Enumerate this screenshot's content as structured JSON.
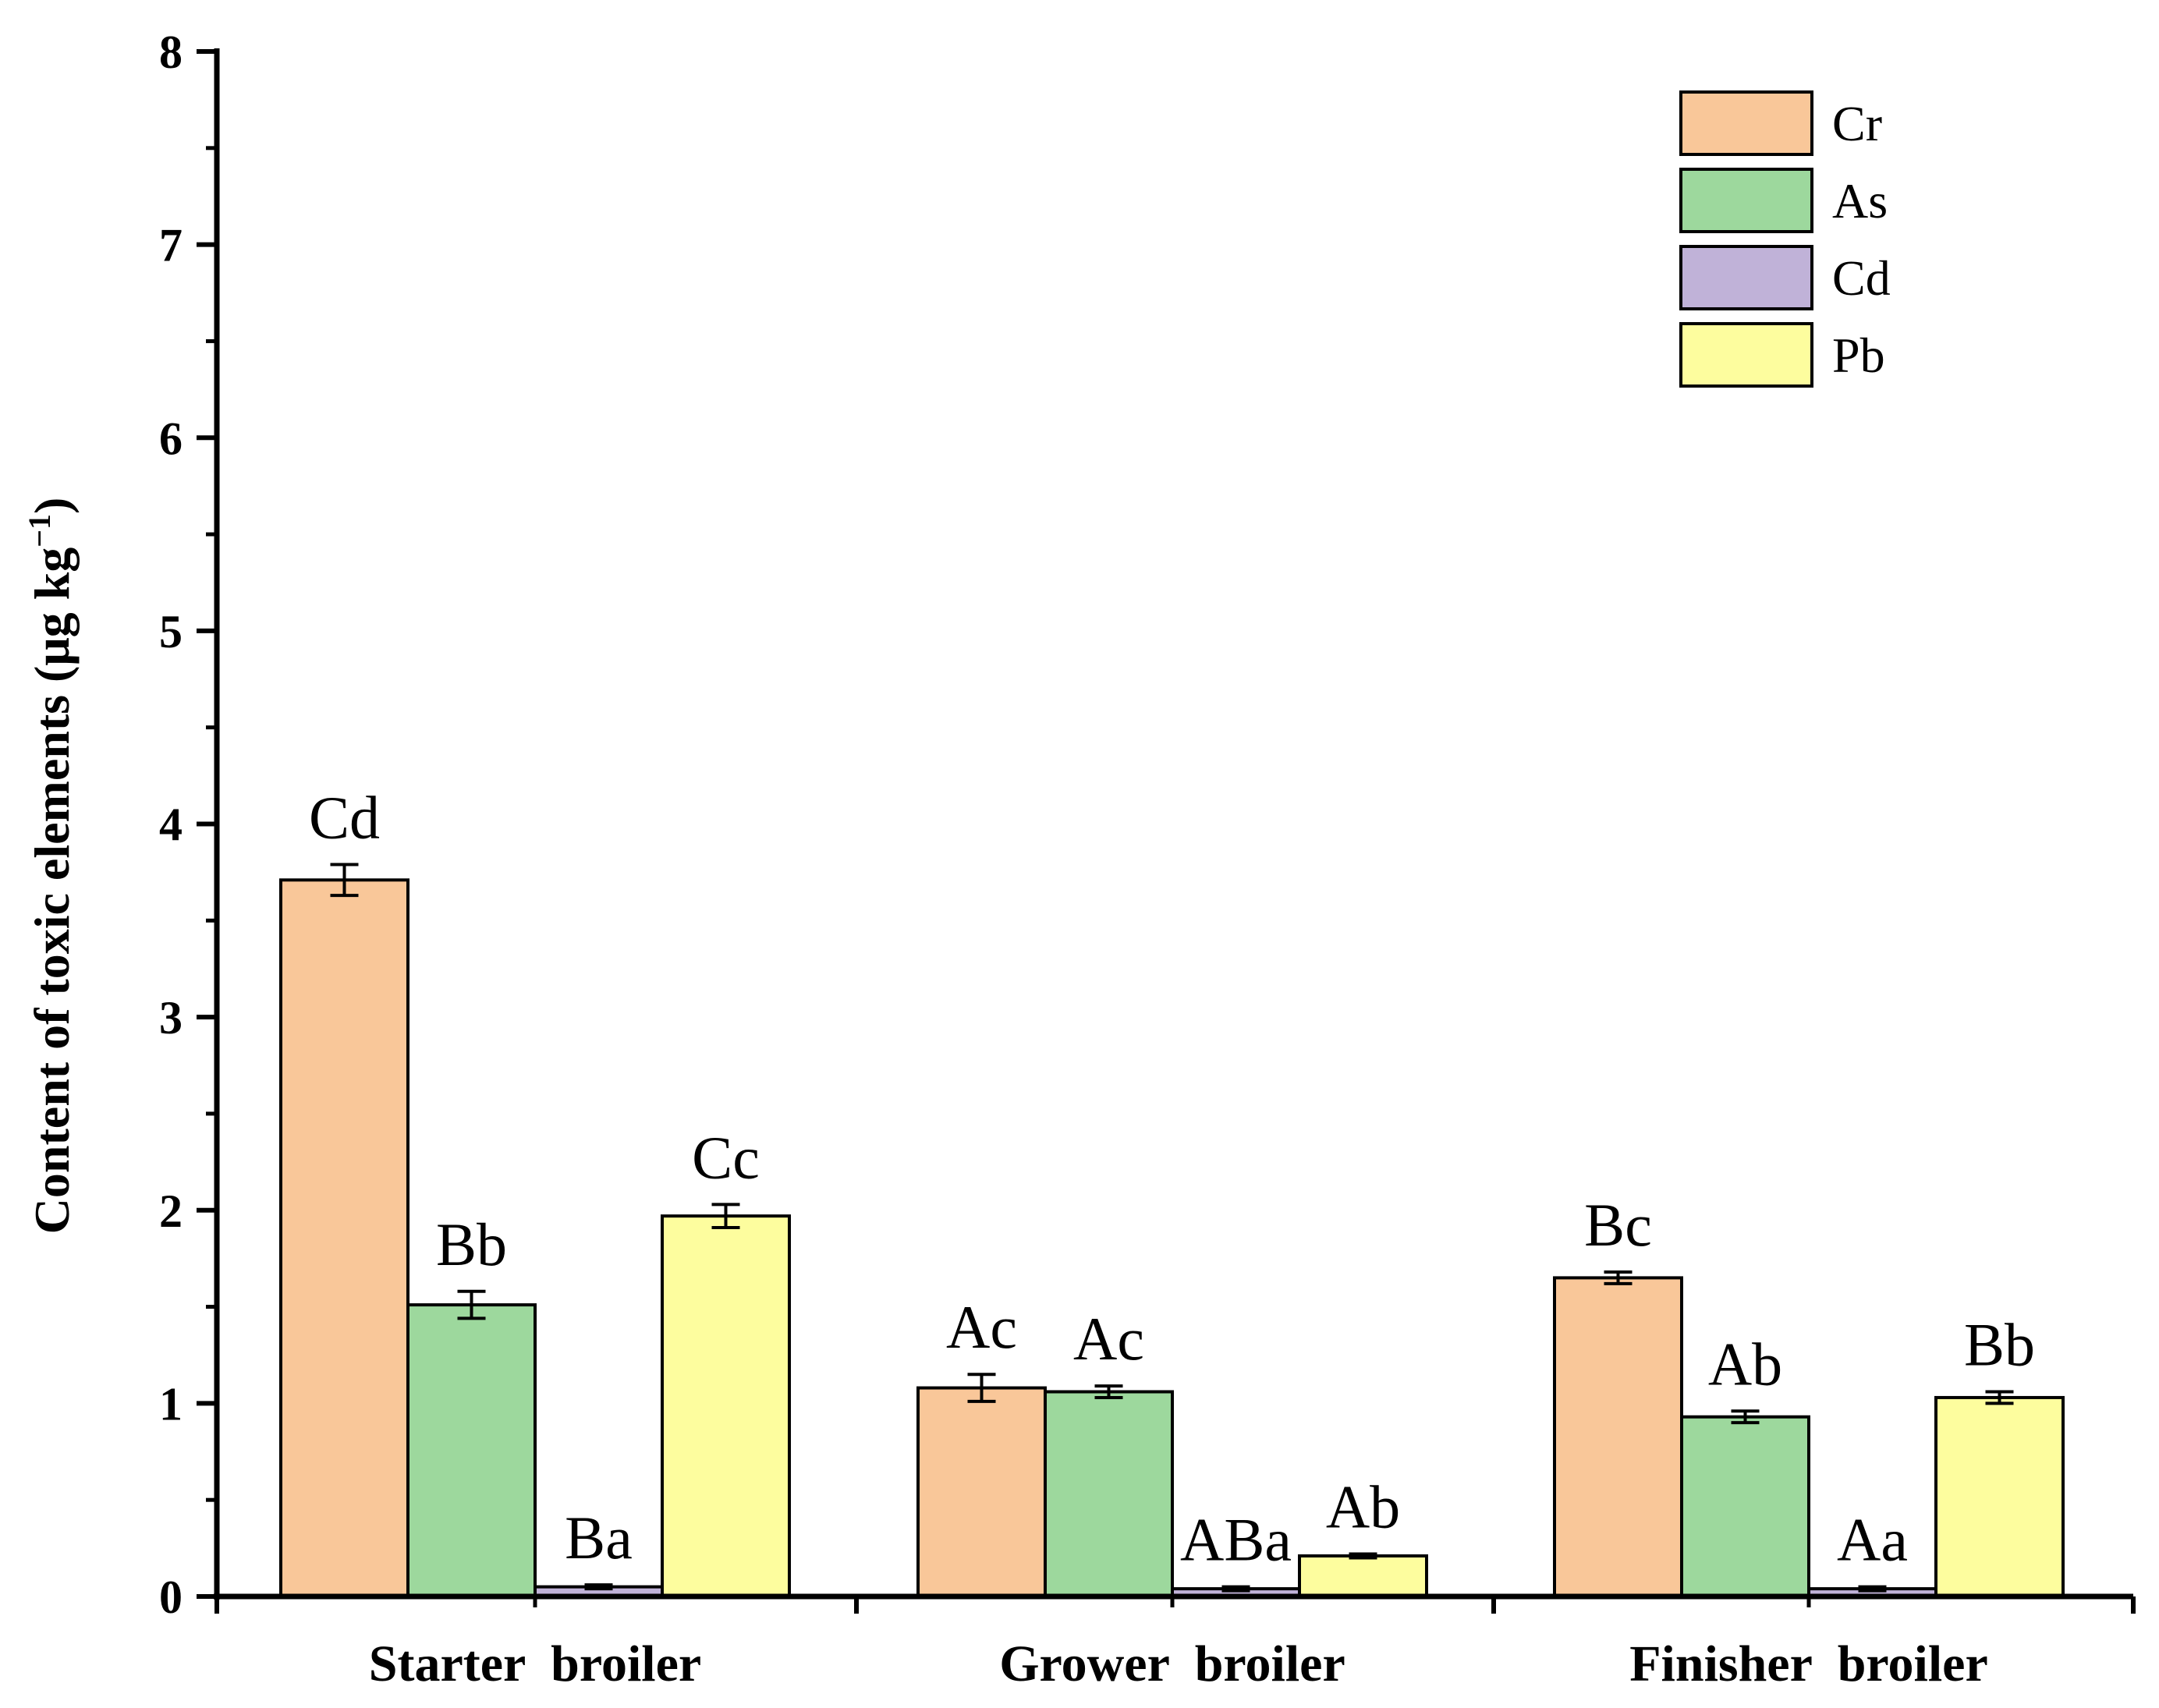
{
  "chart_data": {
    "type": "bar",
    "categories": [
      "Starter  broiler",
      "Grower  broiler",
      "Finisher  broiler"
    ],
    "ylabel": "Content of toxic elements (μg kg",
    "ylabel_sup": "−1",
    "ylabel_close": ")",
    "ylim": [
      0,
      8
    ],
    "yticks": [
      "0",
      "1",
      "2",
      "3",
      "4",
      "5",
      "6",
      "7",
      "8"
    ],
    "legend_position": "top-right",
    "series": [
      {
        "name": "Cr",
        "color": "#F9C799",
        "values": [
          3.71,
          1.08,
          1.65
        ],
        "errors": [
          0.08,
          0.07,
          0.03
        ],
        "labels": [
          "Cd",
          "Ac",
          "Bc"
        ]
      },
      {
        "name": "As",
        "color": "#9DD89D",
        "values": [
          1.51,
          1.06,
          0.93
        ],
        "errors": [
          0.07,
          0.03,
          0.03
        ],
        "labels": [
          "Bb",
          "Ac",
          "Ab"
        ]
      },
      {
        "name": "Cd",
        "color": "#C0B2D8",
        "values": [
          0.05,
          0.04,
          0.04
        ],
        "errors": [
          0.01,
          0.01,
          0.01
        ],
        "labels": [
          "Ba",
          "ABa",
          "Aa"
        ]
      },
      {
        "name": "Pb",
        "color": "#FDFD9E",
        "values": [
          1.97,
          0.21,
          1.03
        ],
        "errors": [
          0.06,
          0.01,
          0.03
        ],
        "labels": [
          "Cc",
          "Ab",
          "Bb"
        ]
      }
    ]
  }
}
